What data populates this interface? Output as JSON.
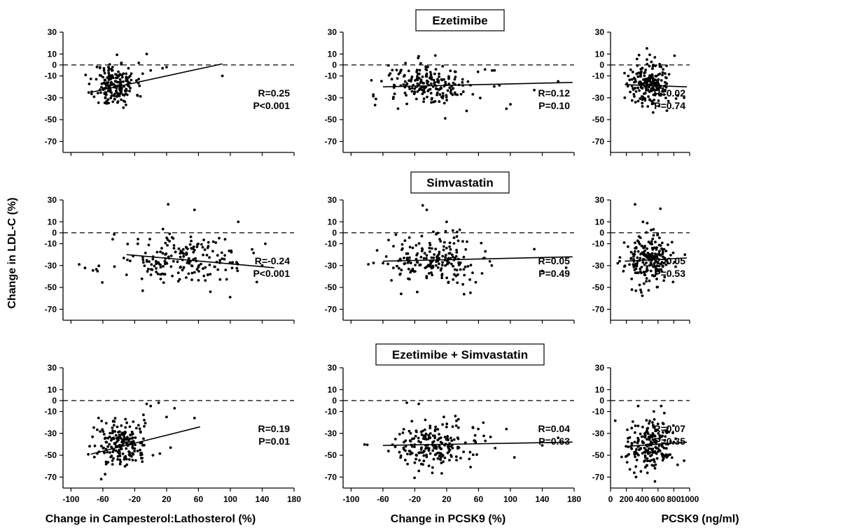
{
  "figure": {
    "ylabel": "Change in LDL-C (%)",
    "xlabels": [
      "Change in Campesterol:Lathosterol (%)",
      "Change in PCSK9 (%)",
      "PCSK9 (ng/ml)"
    ],
    "row_titles": [
      "Ezetimibe",
      "Simvastatin",
      "Ezetimibe + Simvastatin"
    ]
  },
  "chart_data": [
    {
      "type": "scatter",
      "row": 0,
      "col": 0,
      "r_label": "R=0.25",
      "p_label": "P<0.001",
      "xlim": [
        -110,
        180
      ],
      "ylim": [
        -80,
        30
      ],
      "xticks": [
        -100,
        -60,
        -20,
        20,
        60,
        100,
        140,
        180
      ],
      "yticks": [
        30,
        10,
        0,
        -10,
        -30,
        -50,
        -70
      ],
      "cloud": {
        "x_center": -45,
        "x_spread": 13,
        "y_center": -18,
        "y_spread": 10,
        "n": 190,
        "seed": 11
      },
      "extra_points": [
        [
          -5,
          10
        ],
        [
          -10,
          -8
        ],
        [
          0,
          -5
        ],
        [
          15,
          -3
        ],
        [
          90,
          -10
        ],
        [
          20,
          -2
        ],
        [
          -15,
          -13
        ]
      ],
      "trend": {
        "x": [
          -75,
          90
        ],
        "y": [
          -25,
          1
        ]
      }
    },
    {
      "type": "scatter",
      "row": 0,
      "col": 1,
      "r_label": "R=0.12",
      "p_label": "P=0.10",
      "xlim": [
        -110,
        180
      ],
      "ylim": [
        -80,
        30
      ],
      "xticks": [
        -100,
        -60,
        -20,
        20,
        60,
        100,
        140,
        180
      ],
      "yticks": [
        30,
        10,
        0,
        -10,
        -30,
        -50,
        -70
      ],
      "cloud": {
        "x_center": 0,
        "x_spread": 28,
        "y_center": -18,
        "y_spread": 10,
        "n": 200,
        "seed": 12
      },
      "extra_points": [
        [
          100,
          -36
        ],
        [
          95,
          -40
        ],
        [
          130,
          -23
        ],
        [
          160,
          -15
        ],
        [
          80,
          -5
        ],
        [
          45,
          -42
        ]
      ],
      "trend": {
        "x": [
          -60,
          178
        ],
        "y": [
          -20,
          -16
        ]
      }
    },
    {
      "type": "scatter",
      "row": 0,
      "col": 2,
      "r_label": "R=0.02",
      "p_label": "P=0.74",
      "xlim": [
        0,
        1000
      ],
      "ylim": [
        -80,
        30
      ],
      "xticks": [
        0,
        200,
        400,
        600,
        800,
        1000
      ],
      "yticks": [
        30,
        10,
        0,
        -10,
        -30,
        -50,
        -70
      ],
      "cloud": {
        "x_center": 500,
        "x_spread": 140,
        "y_center": -18,
        "y_spread": 10,
        "n": 200,
        "seed": 13
      },
      "extra_points": [
        [
          360,
          9
        ],
        [
          460,
          5
        ],
        [
          560,
          7
        ],
        [
          850,
          -28
        ],
        [
          930,
          -30
        ],
        [
          180,
          -30
        ]
      ],
      "trend": {
        "x": [
          180,
          965
        ],
        "y": [
          -18,
          -20
        ]
      }
    },
    {
      "type": "scatter",
      "row": 1,
      "col": 0,
      "r_label": "R=-0.24",
      "p_label": "P<0.001",
      "xlim": [
        -110,
        180
      ],
      "ylim": [
        -80,
        30
      ],
      "xticks": [
        -100,
        -60,
        -20,
        20,
        60,
        100,
        140,
        180
      ],
      "yticks": [
        30,
        10,
        0,
        -10,
        -30,
        -50,
        -70
      ],
      "cloud": {
        "x_center": 40,
        "x_spread": 42,
        "y_center": -25,
        "y_spread": 11,
        "n": 200,
        "seed": 21
      },
      "extra_points": [
        [
          22,
          26
        ],
        [
          55,
          21
        ],
        [
          110,
          10
        ],
        [
          -10,
          -53
        ],
        [
          75,
          -54
        ],
        [
          140,
          -30
        ]
      ],
      "trend": {
        "x": [
          -30,
          155
        ],
        "y": [
          -20,
          -32
        ]
      }
    },
    {
      "type": "scatter",
      "row": 1,
      "col": 1,
      "r_label": "R=0.05",
      "p_label": "P=0.49",
      "xlim": [
        -110,
        180
      ],
      "ylim": [
        -80,
        30
      ],
      "xticks": [
        -100,
        -60,
        -20,
        20,
        60,
        100,
        140,
        180
      ],
      "yticks": [
        30,
        10,
        0,
        -10,
        -30,
        -50,
        -70
      ],
      "cloud": {
        "x_center": 5,
        "x_spread": 28,
        "y_center": -25,
        "y_spread": 11,
        "n": 200,
        "seed": 22
      },
      "extra_points": [
        [
          -10,
          25
        ],
        [
          -5,
          21
        ],
        [
          20,
          10
        ],
        [
          140,
          -35
        ],
        [
          170,
          -32
        ],
        [
          130,
          -15
        ]
      ],
      "trend": {
        "x": [
          -60,
          178
        ],
        "y": [
          -26,
          -22
        ]
      }
    },
    {
      "type": "scatter",
      "row": 1,
      "col": 2,
      "r_label": "R=0.05",
      "p_label": "P=0.53",
      "xlim": [
        0,
        1000
      ],
      "ylim": [
        -80,
        30
      ],
      "xticks": [
        0,
        200,
        400,
        600,
        800,
        1000
      ],
      "yticks": [
        30,
        10,
        0,
        -10,
        -30,
        -50,
        -70
      ],
      "cloud": {
        "x_center": 470,
        "x_spread": 140,
        "y_center": -25,
        "y_spread": 11,
        "n": 200,
        "seed": 23
      },
      "extra_points": [
        [
          310,
          26
        ],
        [
          630,
          22
        ],
        [
          270,
          -52
        ],
        [
          790,
          -45
        ],
        [
          940,
          -20
        ],
        [
          410,
          10
        ]
      ],
      "trend": {
        "x": [
          180,
          965
        ],
        "y": [
          -26,
          -23
        ]
      }
    },
    {
      "type": "scatter",
      "row": 2,
      "col": 0,
      "r_label": "R=0.19",
      "p_label": "P=0.01",
      "xlim": [
        -110,
        180
      ],
      "ylim": [
        -80,
        30
      ],
      "xticks": [
        -100,
        -60,
        -20,
        20,
        60,
        100,
        140,
        180
      ],
      "yticks": [
        30,
        10,
        0,
        -10,
        -30,
        -50,
        -70
      ],
      "cloud": {
        "x_center": -38,
        "x_spread": 18,
        "y_center": -40,
        "y_spread": 11,
        "n": 200,
        "seed": 31
      },
      "extra_points": [
        [
          -5,
          -3
        ],
        [
          0,
          -5
        ],
        [
          10,
          -2
        ],
        [
          20,
          -15
        ],
        [
          30,
          -7
        ],
        [
          55,
          -16
        ],
        [
          25,
          -43
        ]
      ],
      "trend": {
        "x": [
          -75,
          62
        ],
        "y": [
          -49,
          -24
        ]
      }
    },
    {
      "type": "scatter",
      "row": 2,
      "col": 1,
      "r_label": "R=0.04",
      "p_label": "P=0.63",
      "xlim": [
        -110,
        180
      ],
      "ylim": [
        -80,
        30
      ],
      "xticks": [
        -100,
        -60,
        -20,
        20,
        60,
        100,
        140,
        180
      ],
      "yticks": [
        30,
        10,
        0,
        -10,
        -30,
        -50,
        -70
      ],
      "cloud": {
        "x_center": 0,
        "x_spread": 30,
        "y_center": -40,
        "y_spread": 11,
        "n": 200,
        "seed": 32
      },
      "extra_points": [
        [
          -30,
          -2
        ],
        [
          -15,
          -3
        ],
        [
          95,
          -26
        ],
        [
          105,
          -52
        ],
        [
          160,
          -34
        ],
        [
          140,
          -41
        ]
      ],
      "trend": {
        "x": [
          -60,
          178
        ],
        "y": [
          -41,
          -38
        ]
      }
    },
    {
      "type": "scatter",
      "row": 2,
      "col": 2,
      "r_label": "R=0.07",
      "p_label": "P=0.35",
      "xlim": [
        0,
        1000
      ],
      "ylim": [
        -80,
        30
      ],
      "xticks": [
        0,
        200,
        400,
        600,
        800,
        1000
      ],
      "yticks": [
        30,
        10,
        0,
        -10,
        -30,
        -50,
        -70
      ],
      "cloud": {
        "x_center": 500,
        "x_spread": 150,
        "y_center": -40,
        "y_spread": 11,
        "n": 200,
        "seed": 33
      },
      "extra_points": [
        [
          350,
          -5
        ],
        [
          640,
          -5
        ],
        [
          300,
          -66
        ],
        [
          930,
          -55
        ],
        [
          800,
          -38
        ]
      ],
      "trend": {
        "x": [
          180,
          965
        ],
        "y": [
          -42,
          -38
        ]
      }
    }
  ]
}
